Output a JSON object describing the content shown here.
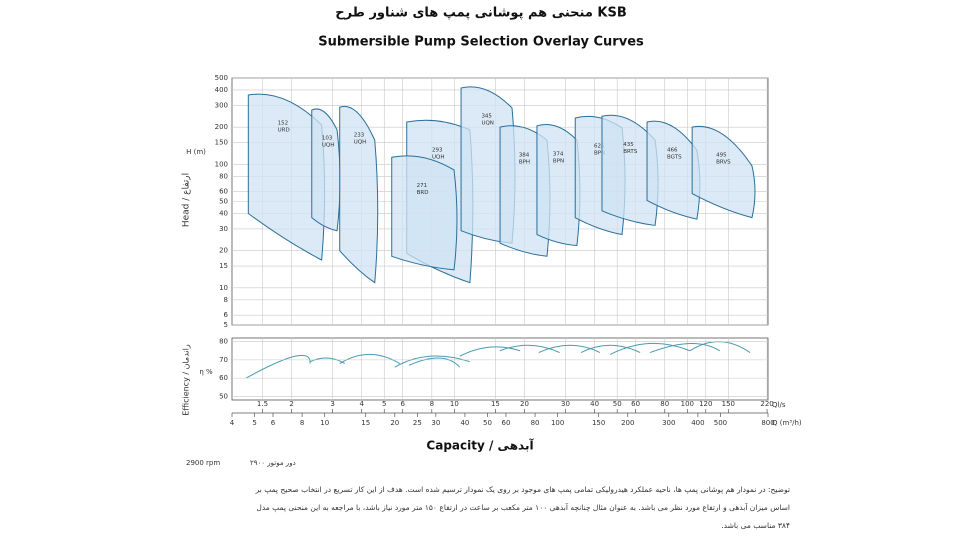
{
  "title": "منحنی هم پوشانی پمپ های شناور طرح KSB",
  "subtitle": "Submersible Pump Selection Overlay Curves",
  "chart_data": [
    {
      "type": "area",
      "y_label": "Head / ارتفاع",
      "y_unit": "H (m)",
      "log_scale": true,
      "grid": true,
      "xlim": [
        4,
        800
      ],
      "ylim": [
        5,
        500
      ],
      "yticks": [
        5,
        6,
        8,
        10,
        15,
        20,
        30,
        40,
        50,
        60,
        80,
        100,
        150,
        200,
        300,
        400,
        500
      ],
      "color": "#cfe3f3",
      "edge_color": "#2a6f9a",
      "series": [
        {
          "name": [
            "152",
            "URD"
          ],
          "q": [
            4.7,
            9.7
          ],
          "top": [
            364,
            208
          ],
          "bottom": [
            40,
            16.8
          ]
        },
        {
          "name": [
            "103",
            "UQH"
          ],
          "q": [
            8.8,
            11.3
          ],
          "top": [
            275,
            190
          ],
          "bottom": [
            37,
            29
          ]
        },
        {
          "name": [
            "233",
            "UQH"
          ],
          "q": [
            11.6,
            16.4
          ],
          "top": [
            290,
            157
          ],
          "bottom": [
            20,
            11
          ]
        },
        {
          "name": [
            "293",
            "UQH"
          ],
          "q": [
            22.5,
            42
          ],
          "top": [
            220,
            190
          ],
          "bottom": [
            19,
            11
          ]
        },
        {
          "name": [
            "271",
            "BRD"
          ],
          "q": [
            19.4,
            35.9
          ],
          "top": [
            114,
            90
          ],
          "bottom": [
            18,
            14
          ]
        },
        {
          "name": [
            "345",
            "UQN"
          ],
          "q": [
            38.5,
            63.7
          ],
          "top": [
            415,
            286
          ],
          "bottom": [
            29,
            23
          ]
        },
        {
          "name": [
            "384",
            "BPH"
          ],
          "q": [
            56.6,
            90
          ],
          "top": [
            200,
            157
          ],
          "bottom": [
            23,
            18
          ]
        },
        {
          "name": [
            "374",
            "BPN"
          ],
          "q": [
            81.5,
            121
          ],
          "top": [
            205,
            157
          ],
          "bottom": [
            27,
            22
          ]
        },
        {
          "name": [
            "625",
            "BPN"
          ],
          "q": [
            119,
            189
          ],
          "top": [
            237,
            197
          ],
          "bottom": [
            37,
            27
          ]
        },
        {
          "name": [
            "435",
            "BRTS"
          ],
          "q": [
            155,
            262
          ],
          "top": [
            245,
            157
          ],
          "bottom": [
            42,
            32
          ]
        },
        {
          "name": [
            "466",
            "BGTS"
          ],
          "q": [
            242,
            396
          ],
          "top": [
            220,
            130
          ],
          "bottom": [
            51,
            36
          ]
        },
        {
          "name": [
            "495",
            "BRVS"
          ],
          "q": [
            378,
            683
          ],
          "top": [
            200,
            97
          ],
          "bottom": [
            58,
            37
          ]
        }
      ]
    },
    {
      "type": "line",
      "y_label": "Efficiency / راندمان",
      "y_unit": "η %",
      "log_scale": true,
      "xlim": [
        4,
        800
      ],
      "ylim": [
        48,
        82
      ],
      "yticks": [
        50,
        60,
        70,
        80
      ],
      "x_label": "Capacity / آبدهی",
      "x_unit": "Q (m³/h)",
      "xticks": [
        4,
        5,
        6,
        8,
        10,
        15,
        20,
        25,
        30,
        40,
        50,
        60,
        80,
        100,
        150,
        200,
        300,
        400,
        500,
        800
      ],
      "x2_unit": "Ql/s",
      "x2lim": [
        1.11,
        222
      ],
      "x2ticks": [
        1.5,
        2,
        3,
        4,
        5,
        6,
        8,
        10,
        15,
        20,
        30,
        40,
        50,
        60,
        80,
        100,
        120,
        150,
        220
      ],
      "color": "#4a9ab0",
      "series": [
        {
          "x": [
            4.6,
            7.45,
            8.65
          ],
          "values": [
            60,
            72,
            68
          ]
        },
        {
          "x": [
            8.65,
            10.3,
            12.2
          ],
          "values": [
            69,
            71,
            68
          ]
        },
        {
          "x": [
            11.6,
            15.6,
            21
          ],
          "values": [
            68,
            73,
            68
          ]
        },
        {
          "x": [
            20,
            28.3,
            42
          ],
          "values": [
            66,
            72,
            69
          ]
        },
        {
          "x": [
            23,
            31,
            38
          ],
          "values": [
            67,
            71,
            66
          ]
        },
        {
          "x": [
            38,
            51,
            69
          ],
          "values": [
            72,
            77,
            75
          ]
        },
        {
          "x": [
            56.6,
            76,
            102
          ],
          "values": [
            75,
            78,
            74
          ]
        },
        {
          "x": [
            83,
            113,
            152
          ],
          "values": [
            74,
            78,
            74
          ]
        },
        {
          "x": [
            126,
            168,
            226
          ],
          "values": [
            74,
            78,
            74
          ]
        },
        {
          "x": [
            168,
            249,
            370
          ],
          "values": [
            73,
            79,
            75
          ]
        },
        {
          "x": [
            249,
            370,
            497
          ],
          "values": [
            74,
            79,
            75
          ]
        },
        {
          "x": [
            370,
            497,
            670
          ],
          "values": [
            75,
            80,
            74
          ]
        }
      ]
    }
  ],
  "rpm": {
    "en": "2900 rpm",
    "fa": "دور موتور ۲۹۰۰"
  },
  "notes": [
    "توضیح: در نمودار هم پوشانی پمپ ها، ناحیه عملکرد هیدرولیکی تمامی پمپ های موجود بر روی یک نمودار ترسیم شده است. هدف از این کار تسریع در انتخاب صحیح پمپ بر",
    "اساس میزان آبدهی و ارتفاع مورد نظر می باشد. به عنوان مثال چنانچه آبدهی ۱۰۰ متر مکعب بر ساعت در ارتفاع ۱۵۰ متر مورد نیاز باشد، با مراجعه به این منحنی پمپ مدل",
    "۳۸۴ مناسب می باشد."
  ]
}
